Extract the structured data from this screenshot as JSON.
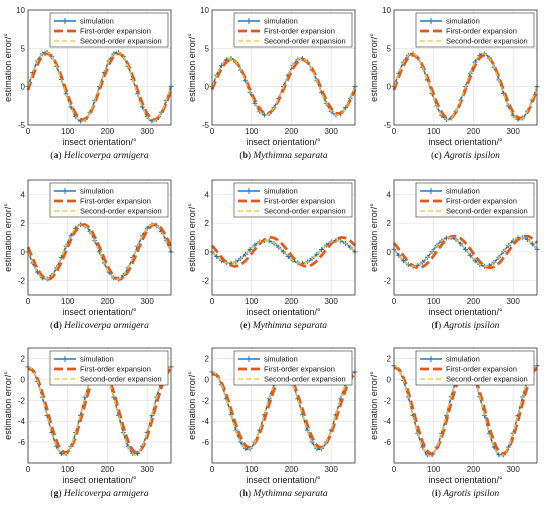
{
  "colors": {
    "simulation": "#1f77c4",
    "first_order": "#e25a1c",
    "second_order": "#f2c12e",
    "grid": "#dddddd",
    "axis": "#333333"
  },
  "legend": {
    "entries": [
      "simulation",
      "First-order expansion",
      "Second-order expansion"
    ]
  },
  "axis_labels": {
    "x": "insect orientation/°",
    "y": "estimation error/°"
  },
  "chart_data": [
    {
      "type": "line",
      "caption_letter": "(a)",
      "caption_species": "Helicoverpa armigera",
      "xlabel": "insect orientation/°",
      "ylabel": "estimation error/°",
      "xlim": [
        0,
        360
      ],
      "ylim": [
        -5,
        10
      ],
      "xticks": [
        0,
        100,
        200,
        300
      ],
      "yticks": [
        -5,
        0,
        5,
        10
      ],
      "grid": true,
      "legend_placement": "top-right",
      "series": [
        {
          "name": "simulation",
          "amplitude": 4.5,
          "offset": 0,
          "phase": 45
        },
        {
          "name": "First-order expansion",
          "amplitude": 4.3,
          "offset": 0,
          "phase": 48
        },
        {
          "name": "Second-order expansion",
          "amplitude": 4.5,
          "offset": 0,
          "phase": 45
        }
      ]
    },
    {
      "type": "line",
      "caption_letter": "(b)",
      "caption_species": "Mythimna separata",
      "xlabel": "insect orientation/°",
      "ylabel": "estimation error/°",
      "xlim": [
        0,
        360
      ],
      "ylim": [
        -5,
        10
      ],
      "xticks": [
        0,
        100,
        200,
        300
      ],
      "yticks": [
        -5,
        0,
        5,
        10
      ],
      "grid": true,
      "legend_placement": "top-right",
      "series": [
        {
          "name": "simulation",
          "amplitude": 3.7,
          "offset": 0,
          "phase": 45
        },
        {
          "name": "First-order expansion",
          "amplitude": 3.5,
          "offset": 0,
          "phase": 48
        },
        {
          "name": "Second-order expansion",
          "amplitude": 3.7,
          "offset": 0,
          "phase": 45
        }
      ]
    },
    {
      "type": "line",
      "caption_letter": "(c)",
      "caption_species": "Agrotis ipsilon",
      "xlabel": "insect orientation/°",
      "ylabel": "estimation error/°",
      "xlim": [
        0,
        360
      ],
      "ylim": [
        -5,
        10
      ],
      "xticks": [
        0,
        100,
        200,
        300
      ],
      "yticks": [
        -5,
        0,
        5,
        10
      ],
      "grid": true,
      "legend_placement": "top-right",
      "series": [
        {
          "name": "simulation",
          "amplitude": 4.3,
          "offset": 0,
          "phase": 45
        },
        {
          "name": "First-order expansion",
          "amplitude": 4.1,
          "offset": 0,
          "phase": 48
        },
        {
          "name": "Second-order expansion",
          "amplitude": 4.3,
          "offset": 0,
          "phase": 45
        }
      ]
    },
    {
      "type": "line",
      "caption_letter": "(d)",
      "caption_species": "Helicoverpa armigera",
      "xlabel": "insect orientation/°",
      "ylabel": "estimation error/°",
      "xlim": [
        0,
        360
      ],
      "ylim": [
        -3,
        5
      ],
      "xticks": [
        0,
        100,
        200,
        300
      ],
      "yticks": [
        -2,
        0,
        2,
        4
      ],
      "grid": true,
      "legend_placement": "top-right",
      "series": [
        {
          "name": "simulation",
          "amplitude": 1.9,
          "offset": 0,
          "phase": 135
        },
        {
          "name": "First-order expansion",
          "amplitude": 1.9,
          "offset": 0,
          "phase": 140
        },
        {
          "name": "Second-order expansion",
          "amplitude": 1.9,
          "offset": 0,
          "phase": 135
        }
      ]
    },
    {
      "type": "line",
      "caption_letter": "(e)",
      "caption_species": "Mythimna separata",
      "xlabel": "insect orientation/°",
      "ylabel": "estimation error/°",
      "xlim": [
        0,
        360
      ],
      "ylim": [
        -3,
        5
      ],
      "xticks": [
        0,
        100,
        200,
        300
      ],
      "yticks": [
        -2,
        0,
        2,
        4
      ],
      "grid": true,
      "legend_placement": "top-right",
      "series": [
        {
          "name": "simulation",
          "amplitude": 0.8,
          "offset": 0,
          "phase": 135
        },
        {
          "name": "First-order expansion",
          "amplitude": 1.0,
          "offset": 0,
          "phase": 148
        },
        {
          "name": "Second-order expansion",
          "amplitude": 0.8,
          "offset": 0,
          "phase": 135
        }
      ]
    },
    {
      "type": "line",
      "caption_letter": "(f)",
      "caption_species": "Agrotis ipsilon",
      "xlabel": "insect orientation/°",
      "ylabel": "estimation error/°",
      "xlim": [
        0,
        360
      ],
      "ylim": [
        -3,
        5
      ],
      "xticks": [
        0,
        100,
        200,
        300
      ],
      "yticks": [
        -2,
        0,
        2,
        4
      ],
      "grid": true,
      "legend_placement": "top-right",
      "series": [
        {
          "name": "simulation",
          "amplitude": 1.0,
          "offset": 0,
          "phase": 140
        },
        {
          "name": "First-order expansion",
          "amplitude": 1.1,
          "offset": 0,
          "phase": 152
        },
        {
          "name": "Second-order expansion",
          "amplitude": 1.0,
          "offset": 0,
          "phase": 140
        }
      ]
    },
    {
      "type": "line",
      "caption_letter": "(g)",
      "caption_species": "Helicoverpa armigera",
      "xlabel": "insect orientation/°",
      "ylabel": "estimation error/°",
      "xlim": [
        0,
        360
      ],
      "ylim": [
        -8,
        3
      ],
      "xticks": [
        0,
        100,
        200,
        300
      ],
      "yticks": [
        -6,
        -4,
        -2,
        0,
        2
      ],
      "grid": true,
      "legend_placement": "top-right",
      "series": [
        {
          "name": "simulation",
          "amplitude": 4.2,
          "offset": -3,
          "phase": 180
        },
        {
          "name": "First-order expansion",
          "amplitude": 4.0,
          "offset": -3,
          "phase": 184
        },
        {
          "name": "Second-order expansion",
          "amplitude": 4.2,
          "offset": -3,
          "phase": 180
        }
      ]
    },
    {
      "type": "line",
      "caption_letter": "(h)",
      "caption_species": "Mythimna separata",
      "xlabel": "insect orientation/°",
      "ylabel": "estimation error/°",
      "xlim": [
        0,
        360
      ],
      "ylim": [
        -8,
        3
      ],
      "xticks": [
        0,
        100,
        200,
        300
      ],
      "yticks": [
        -6,
        -4,
        -2,
        0,
        2
      ],
      "grid": true,
      "legend_placement": "top-right",
      "series": [
        {
          "name": "simulation",
          "amplitude": 3.7,
          "offset": -3,
          "phase": 180
        },
        {
          "name": "First-order expansion",
          "amplitude": 3.5,
          "offset": -3,
          "phase": 184
        },
        {
          "name": "Second-order expansion",
          "amplitude": 3.7,
          "offset": -3,
          "phase": 180
        }
      ]
    },
    {
      "type": "line",
      "caption_letter": "(i)",
      "caption_species": "Agrotis ipsilon",
      "xlabel": "insect orientation/°",
      "ylabel": "estimation error/°",
      "xlim": [
        0,
        360
      ],
      "ylim": [
        -8,
        3
      ],
      "xticks": [
        0,
        100,
        200,
        300
      ],
      "yticks": [
        -6,
        -4,
        -2,
        0,
        2
      ],
      "grid": true,
      "legend_placement": "top-right",
      "series": [
        {
          "name": "simulation",
          "amplitude": 4.3,
          "offset": -3,
          "phase": 180
        },
        {
          "name": "First-order expansion",
          "amplitude": 4.1,
          "offset": -3,
          "phase": 184
        },
        {
          "name": "Second-order expansion",
          "amplitude": 4.3,
          "offset": -3,
          "phase": 180
        }
      ]
    }
  ]
}
